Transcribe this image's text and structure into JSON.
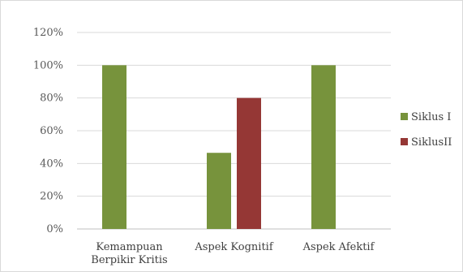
{
  "chart_data": {
    "type": "bar",
    "categories": [
      "Kemampuan Berpikir Kritis",
      "Aspek Kognitif",
      "Aspek Afektif"
    ],
    "category_lines": [
      [
        "Kemampuan",
        "Berpikir Kritis"
      ],
      [
        "Aspek Kognitif"
      ],
      [
        "Aspek Afektif"
      ]
    ],
    "series": [
      {
        "name": "Siklus I",
        "color": "#77933c",
        "values": [
          100,
          46.5,
          100
        ]
      },
      {
        "name": "SiklusII",
        "color": "#953735",
        "values": [
          null,
          80,
          null
        ]
      }
    ],
    "yticks": [
      "0%",
      "20%",
      "40%",
      "60%",
      "80%",
      "100%",
      "120%"
    ],
    "ylim": [
      0,
      120
    ],
    "grid": true,
    "legend_position": "right"
  }
}
